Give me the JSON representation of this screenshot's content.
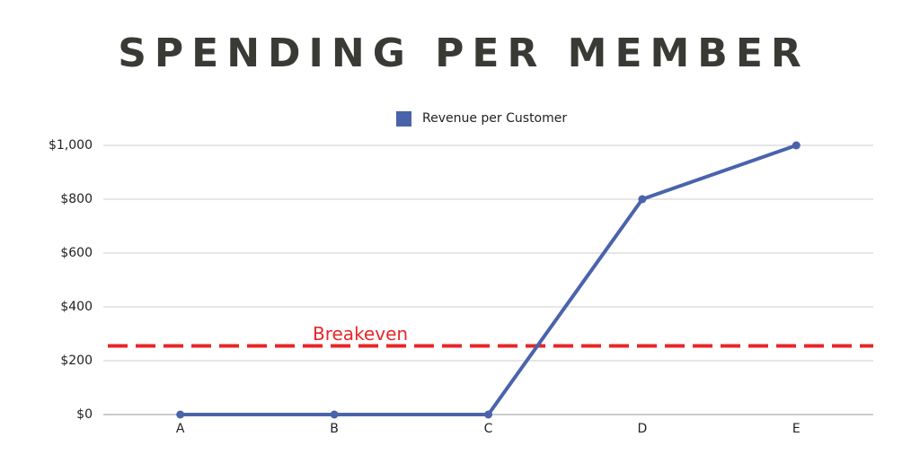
{
  "chart_data": {
    "type": "line",
    "title": "SPENDING PER MEMBER",
    "categories": [
      "A",
      "B",
      "C",
      "D",
      "E"
    ],
    "series": [
      {
        "name": "Revenue per Customer",
        "color": "#4a63ab",
        "values": [
          0,
          0,
          0,
          800,
          1000
        ]
      }
    ],
    "ylim": [
      0,
      1000
    ],
    "yticks": [
      {
        "value": 0,
        "label": "$0"
      },
      {
        "value": 200,
        "label": "$200"
      },
      {
        "value": 400,
        "label": "$400"
      },
      {
        "value": 600,
        "label": "$600"
      },
      {
        "value": 800,
        "label": "$800"
      },
      {
        "value": 1000,
        "label": "$1,000"
      }
    ],
    "grid": true,
    "legend": "top",
    "reference_line": {
      "label": "Breakeven",
      "value": 255,
      "color": "#e8262a"
    }
  }
}
